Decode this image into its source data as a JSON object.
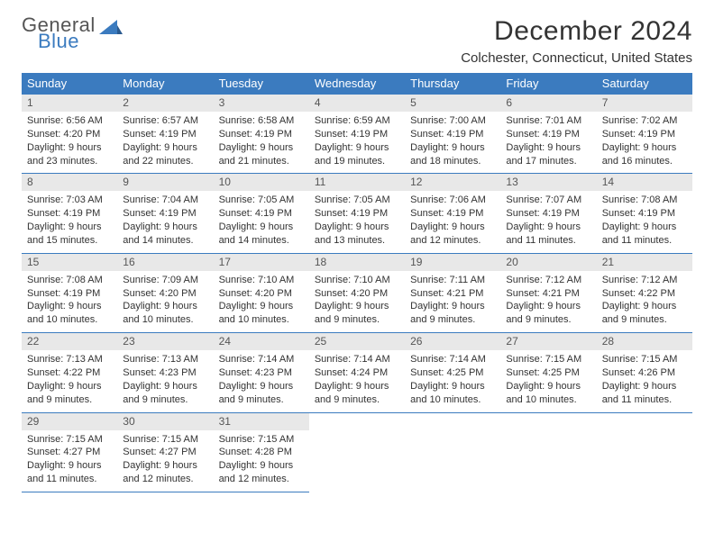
{
  "logo": {
    "general": "General",
    "blue": "Blue",
    "shape_fill": "#3b7bbf"
  },
  "title": "December 2024",
  "location": "Colchester, Connecticut, United States",
  "colors": {
    "header_bg": "#3b7bbf",
    "header_text": "#ffffff",
    "date_bg": "#e8e8e8",
    "row_border": "#3b7bbf",
    "body_text": "#333333"
  },
  "day_headers": [
    "Sunday",
    "Monday",
    "Tuesday",
    "Wednesday",
    "Thursday",
    "Friday",
    "Saturday"
  ],
  "weeks": [
    [
      {
        "date": "1",
        "sunrise": "Sunrise: 6:56 AM",
        "sunset": "Sunset: 4:20 PM",
        "daylight": "Daylight: 9 hours and 23 minutes."
      },
      {
        "date": "2",
        "sunrise": "Sunrise: 6:57 AM",
        "sunset": "Sunset: 4:19 PM",
        "daylight": "Daylight: 9 hours and 22 minutes."
      },
      {
        "date": "3",
        "sunrise": "Sunrise: 6:58 AM",
        "sunset": "Sunset: 4:19 PM",
        "daylight": "Daylight: 9 hours and 21 minutes."
      },
      {
        "date": "4",
        "sunrise": "Sunrise: 6:59 AM",
        "sunset": "Sunset: 4:19 PM",
        "daylight": "Daylight: 9 hours and 19 minutes."
      },
      {
        "date": "5",
        "sunrise": "Sunrise: 7:00 AM",
        "sunset": "Sunset: 4:19 PM",
        "daylight": "Daylight: 9 hours and 18 minutes."
      },
      {
        "date": "6",
        "sunrise": "Sunrise: 7:01 AM",
        "sunset": "Sunset: 4:19 PM",
        "daylight": "Daylight: 9 hours and 17 minutes."
      },
      {
        "date": "7",
        "sunrise": "Sunrise: 7:02 AM",
        "sunset": "Sunset: 4:19 PM",
        "daylight": "Daylight: 9 hours and 16 minutes."
      }
    ],
    [
      {
        "date": "8",
        "sunrise": "Sunrise: 7:03 AM",
        "sunset": "Sunset: 4:19 PM",
        "daylight": "Daylight: 9 hours and 15 minutes."
      },
      {
        "date": "9",
        "sunrise": "Sunrise: 7:04 AM",
        "sunset": "Sunset: 4:19 PM",
        "daylight": "Daylight: 9 hours and 14 minutes."
      },
      {
        "date": "10",
        "sunrise": "Sunrise: 7:05 AM",
        "sunset": "Sunset: 4:19 PM",
        "daylight": "Daylight: 9 hours and 14 minutes."
      },
      {
        "date": "11",
        "sunrise": "Sunrise: 7:05 AM",
        "sunset": "Sunset: 4:19 PM",
        "daylight": "Daylight: 9 hours and 13 minutes."
      },
      {
        "date": "12",
        "sunrise": "Sunrise: 7:06 AM",
        "sunset": "Sunset: 4:19 PM",
        "daylight": "Daylight: 9 hours and 12 minutes."
      },
      {
        "date": "13",
        "sunrise": "Sunrise: 7:07 AM",
        "sunset": "Sunset: 4:19 PM",
        "daylight": "Daylight: 9 hours and 11 minutes."
      },
      {
        "date": "14",
        "sunrise": "Sunrise: 7:08 AM",
        "sunset": "Sunset: 4:19 PM",
        "daylight": "Daylight: 9 hours and 11 minutes."
      }
    ],
    [
      {
        "date": "15",
        "sunrise": "Sunrise: 7:08 AM",
        "sunset": "Sunset: 4:19 PM",
        "daylight": "Daylight: 9 hours and 10 minutes."
      },
      {
        "date": "16",
        "sunrise": "Sunrise: 7:09 AM",
        "sunset": "Sunset: 4:20 PM",
        "daylight": "Daylight: 9 hours and 10 minutes."
      },
      {
        "date": "17",
        "sunrise": "Sunrise: 7:10 AM",
        "sunset": "Sunset: 4:20 PM",
        "daylight": "Daylight: 9 hours and 10 minutes."
      },
      {
        "date": "18",
        "sunrise": "Sunrise: 7:10 AM",
        "sunset": "Sunset: 4:20 PM",
        "daylight": "Daylight: 9 hours and 9 minutes."
      },
      {
        "date": "19",
        "sunrise": "Sunrise: 7:11 AM",
        "sunset": "Sunset: 4:21 PM",
        "daylight": "Daylight: 9 hours and 9 minutes."
      },
      {
        "date": "20",
        "sunrise": "Sunrise: 7:12 AM",
        "sunset": "Sunset: 4:21 PM",
        "daylight": "Daylight: 9 hours and 9 minutes."
      },
      {
        "date": "21",
        "sunrise": "Sunrise: 7:12 AM",
        "sunset": "Sunset: 4:22 PM",
        "daylight": "Daylight: 9 hours and 9 minutes."
      }
    ],
    [
      {
        "date": "22",
        "sunrise": "Sunrise: 7:13 AM",
        "sunset": "Sunset: 4:22 PM",
        "daylight": "Daylight: 9 hours and 9 minutes."
      },
      {
        "date": "23",
        "sunrise": "Sunrise: 7:13 AM",
        "sunset": "Sunset: 4:23 PM",
        "daylight": "Daylight: 9 hours and 9 minutes."
      },
      {
        "date": "24",
        "sunrise": "Sunrise: 7:14 AM",
        "sunset": "Sunset: 4:23 PM",
        "daylight": "Daylight: 9 hours and 9 minutes."
      },
      {
        "date": "25",
        "sunrise": "Sunrise: 7:14 AM",
        "sunset": "Sunset: 4:24 PM",
        "daylight": "Daylight: 9 hours and 9 minutes."
      },
      {
        "date": "26",
        "sunrise": "Sunrise: 7:14 AM",
        "sunset": "Sunset: 4:25 PM",
        "daylight": "Daylight: 9 hours and 10 minutes."
      },
      {
        "date": "27",
        "sunrise": "Sunrise: 7:15 AM",
        "sunset": "Sunset: 4:25 PM",
        "daylight": "Daylight: 9 hours and 10 minutes."
      },
      {
        "date": "28",
        "sunrise": "Sunrise: 7:15 AM",
        "sunset": "Sunset: 4:26 PM",
        "daylight": "Daylight: 9 hours and 11 minutes."
      }
    ],
    [
      {
        "date": "29",
        "sunrise": "Sunrise: 7:15 AM",
        "sunset": "Sunset: 4:27 PM",
        "daylight": "Daylight: 9 hours and 11 minutes."
      },
      {
        "date": "30",
        "sunrise": "Sunrise: 7:15 AM",
        "sunset": "Sunset: 4:27 PM",
        "daylight": "Daylight: 9 hours and 12 minutes."
      },
      {
        "date": "31",
        "sunrise": "Sunrise: 7:15 AM",
        "sunset": "Sunset: 4:28 PM",
        "daylight": "Daylight: 9 hours and 12 minutes."
      },
      null,
      null,
      null,
      null
    ]
  ]
}
